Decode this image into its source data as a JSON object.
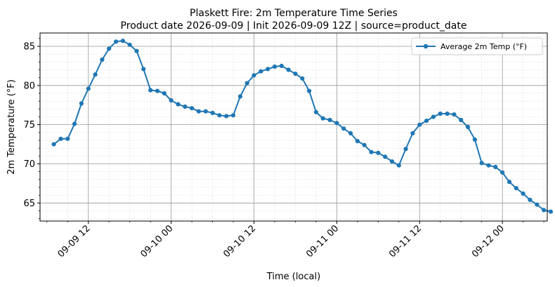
{
  "chart_data": {
    "type": "line",
    "title_line1": "Plaskett Fire: 2m Temperature Time Series",
    "title_line2": "Product date 2026-09-09 | Init 2026-09-09 12Z | source=product_date",
    "xlabel": "Time (local)",
    "ylabel": "2m Temperature (°F)",
    "x_start": "2026-09-09 07:00",
    "x_step_hours": 1,
    "xlim": [
      "2026-09-09 05:00",
      "2026-09-12 06:30"
    ],
    "x_ticks": [
      {
        "label": "09-09 12",
        "hour": 12
      },
      {
        "label": "09-10 00",
        "hour": 24
      },
      {
        "label": "09-10 12",
        "hour": 36
      },
      {
        "label": "09-11 00",
        "hour": 48
      },
      {
        "label": "09-11 12",
        "hour": 60
      },
      {
        "label": "09-12 00",
        "hour": 72
      }
    ],
    "ylim": [
      62.7,
      86.7
    ],
    "y_ticks": [
      65,
      70,
      75,
      80,
      85
    ],
    "grid": true,
    "legend": {
      "placement": "top-right"
    },
    "series": [
      {
        "name": "Average 2m Temp (°F)",
        "color": "#1f77b4",
        "values": [
          72.5,
          73.2,
          73.2,
          75.1,
          77.7,
          79.6,
          81.4,
          83.3,
          84.7,
          85.6,
          85.7,
          85.2,
          84.4,
          82.1,
          79.4,
          79.3,
          79.0,
          78.1,
          77.6,
          77.3,
          77.1,
          76.7,
          76.7,
          76.5,
          76.2,
          76.1,
          76.2,
          78.6,
          80.3,
          81.3,
          81.8,
          82.1,
          82.4,
          82.5,
          82.0,
          81.5,
          80.9,
          79.3,
          76.6,
          75.8,
          75.6,
          75.2,
          74.5,
          73.9,
          72.9,
          72.4,
          71.5,
          71.4,
          70.9,
          70.3,
          69.8,
          71.9,
          73.9,
          75.0,
          75.5,
          76.0,
          76.4,
          76.4,
          76.3,
          75.6,
          74.7,
          73.1,
          70.1,
          69.8,
          69.6,
          68.9,
          67.7,
          66.9,
          66.2,
          65.4,
          64.8,
          64.1,
          63.9
        ]
      }
    ]
  }
}
